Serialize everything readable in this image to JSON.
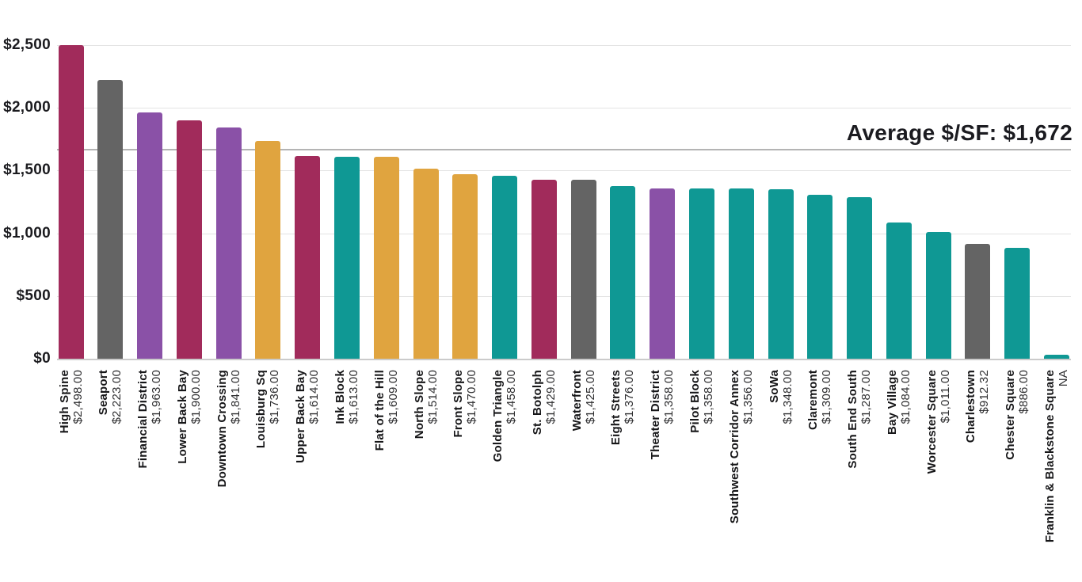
{
  "chart_data": {
    "type": "bar",
    "title": "",
    "annotation": "Average $/SF: $1,672",
    "average_value": 1672,
    "xlabel": "",
    "ylabel": "",
    "ylim": [
      0,
      2500
    ],
    "grid": true,
    "legend_position": "none",
    "yticks": [
      {
        "label": "$0",
        "value": 0
      },
      {
        "label": "$500",
        "value": 500
      },
      {
        "label": "$1,000",
        "value": 1000
      },
      {
        "label": "$1,500",
        "value": 1500
      },
      {
        "label": "$2,000",
        "value": 2000
      },
      {
        "label": "$2,500",
        "value": 2500
      }
    ],
    "palette": {
      "maroon": "#a12b5b",
      "gray": "#646464",
      "purple": "#8a51a7",
      "gold": "#e0a43f",
      "teal": "#0f9894"
    },
    "bars": [
      {
        "name": "High Spine",
        "value_label": "$2,498.00",
        "value": 2498,
        "color": "maroon"
      },
      {
        "name": "Seaport",
        "value_label": "$2,223.00",
        "value": 2223,
        "color": "gray"
      },
      {
        "name": "Financial District",
        "value_label": "$1,963.00",
        "value": 1963,
        "color": "purple"
      },
      {
        "name": "Lower Back Bay",
        "value_label": "$1,900.00",
        "value": 1900,
        "color": "maroon"
      },
      {
        "name": "Downtown Crossing",
        "value_label": "$1,841.00",
        "value": 1841,
        "color": "purple"
      },
      {
        "name": "Louisburg Sq",
        "value_label": "$1,736.00",
        "value": 1736,
        "color": "gold"
      },
      {
        "name": "Upper Back Bay",
        "value_label": "$1,614.00",
        "value": 1614,
        "color": "maroon"
      },
      {
        "name": "Ink Block",
        "value_label": "$1,613.00",
        "value": 1613,
        "color": "teal"
      },
      {
        "name": "Flat of the Hill",
        "value_label": "$1,609.00",
        "value": 1609,
        "color": "gold"
      },
      {
        "name": "North Slope",
        "value_label": "$1,514.00",
        "value": 1514,
        "color": "gold"
      },
      {
        "name": "Front Slope",
        "value_label": "$1,470.00",
        "value": 1470,
        "color": "gold"
      },
      {
        "name": "Golden Triangle",
        "value_label": "$1,458.00",
        "value": 1458,
        "color": "teal"
      },
      {
        "name": "St. Botolph",
        "value_label": "$1,429.00",
        "value": 1429,
        "color": "maroon"
      },
      {
        "name": "Waterfront",
        "value_label": "$1,425.00",
        "value": 1425,
        "color": "gray"
      },
      {
        "name": "Eight Streets",
        "value_label": "$1,376.00",
        "value": 1376,
        "color": "teal"
      },
      {
        "name": "Theater District",
        "value_label": "$1,358.00",
        "value": 1358,
        "color": "purple"
      },
      {
        "name": "Pilot Block",
        "value_label": "$1,358.00",
        "value": 1358,
        "color": "teal"
      },
      {
        "name": "Southwest Corridor Annex",
        "value_label": "$1,356.00",
        "value": 1356,
        "color": "teal"
      },
      {
        "name": "SoWa",
        "value_label": "$1,348.00",
        "value": 1348,
        "color": "teal"
      },
      {
        "name": "Claremont",
        "value_label": "$1,309.00",
        "value": 1309,
        "color": "teal"
      },
      {
        "name": "South End South",
        "value_label": "$1,287.00",
        "value": 1287,
        "color": "teal"
      },
      {
        "name": "Bay Village",
        "value_label": "$1,084.00",
        "value": 1084,
        "color": "teal"
      },
      {
        "name": "Worcester Square",
        "value_label": "$1,011.00",
        "value": 1011,
        "color": "teal"
      },
      {
        "name": "Charlestown",
        "value_label": "$912.32",
        "value": 912.32,
        "color": "gray"
      },
      {
        "name": "Chester Square",
        "value_label": "$886.00",
        "value": 886,
        "color": "teal"
      },
      {
        "name": "Franklin & Blackstone Square",
        "value_label": "NA",
        "value": null,
        "color": "teal"
      }
    ]
  }
}
